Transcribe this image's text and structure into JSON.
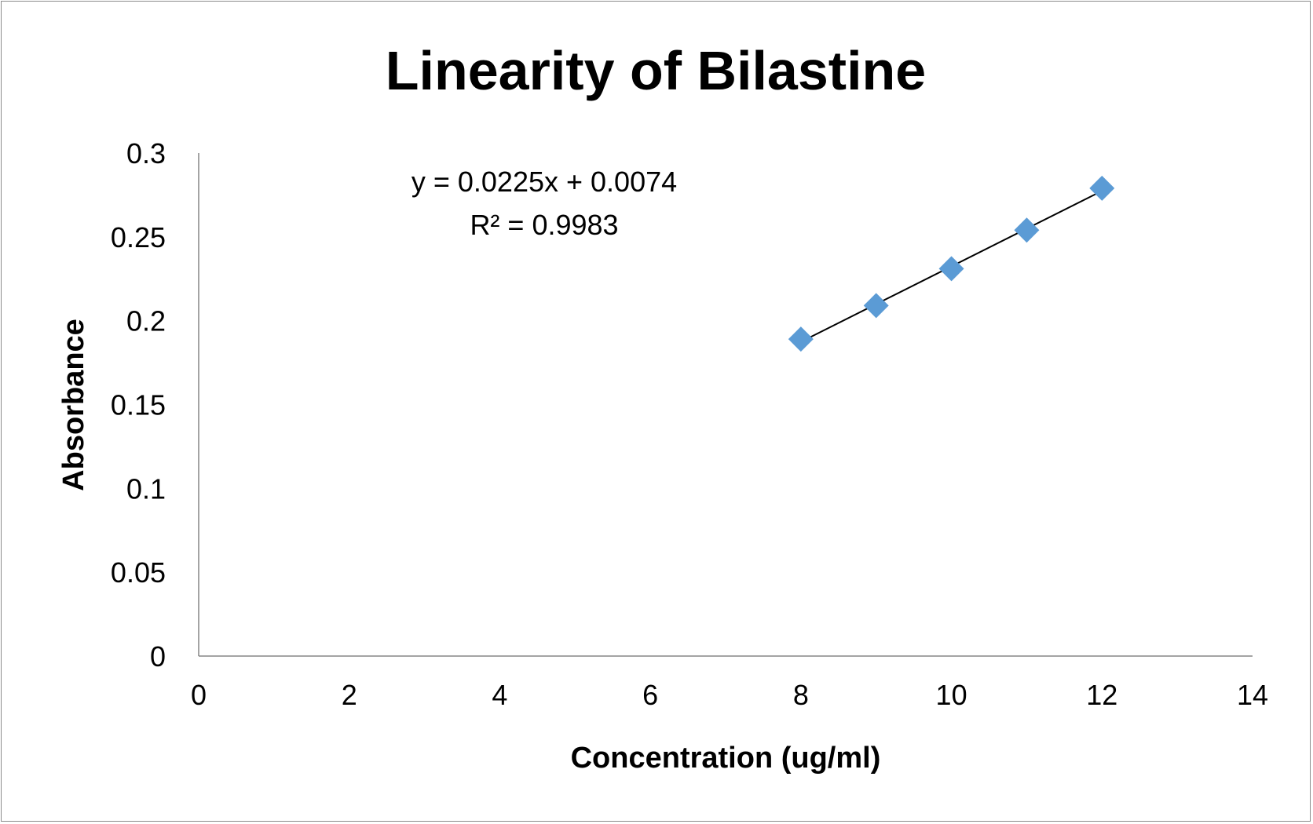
{
  "chart_data": {
    "type": "scatter",
    "title": "Linearity of Bilastine",
    "xlabel": "Concentration (ug/ml)",
    "ylabel": "Absorbance",
    "xlim": [
      0,
      14
    ],
    "ylim": [
      0,
      0.3
    ],
    "x_ticks": [
      "0",
      "2",
      "4",
      "6",
      "8",
      "10",
      "12",
      "14"
    ],
    "y_ticks": [
      "0",
      "0.05",
      "0.1",
      "0.15",
      "0.2",
      "0.25",
      "0.3"
    ],
    "grid": false,
    "legend": "none",
    "series": [
      {
        "marker": "diamond",
        "color": "#5b9bd5",
        "x": [
          8,
          9,
          10,
          11,
          12
        ],
        "y": [
          0.189,
          0.209,
          0.231,
          0.254,
          0.279
        ]
      }
    ],
    "trendline": {
      "type": "linear",
      "slope": 0.0225,
      "intercept": 0.0074,
      "color": "#000000",
      "x_range": [
        8,
        12
      ]
    },
    "annotations": {
      "equation": "y = 0.0225x + 0.0074",
      "r_squared": "R² = 0.9983"
    }
  }
}
